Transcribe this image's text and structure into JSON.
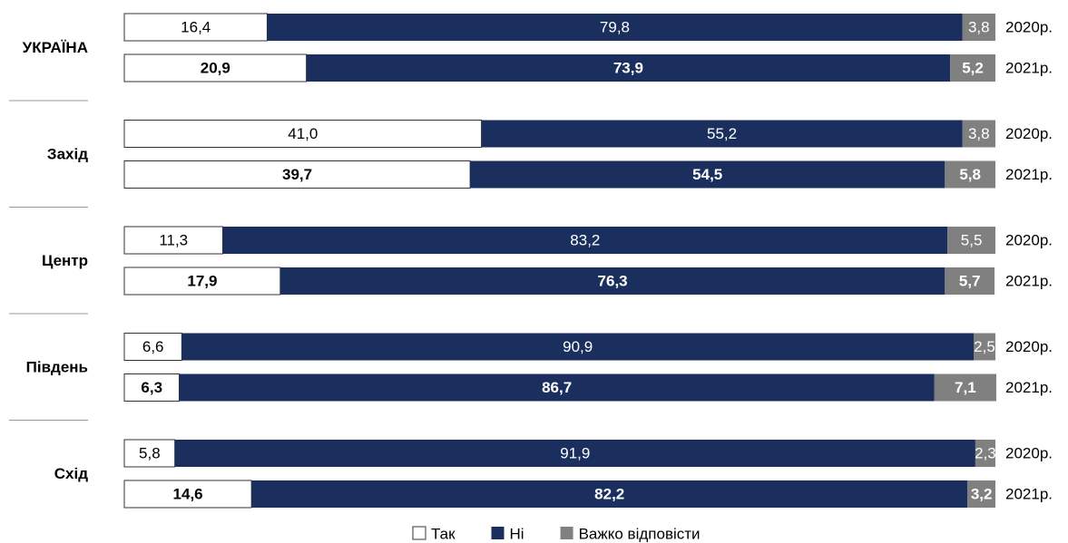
{
  "chart_data": {
    "type": "bar",
    "stacked": true,
    "orientation": "horizontal",
    "groups": [
      "УКРАЇНА",
      "Захід",
      "Центр",
      "Південь",
      "Схід"
    ],
    "categories": [
      "2020р.",
      "2021р.",
      "2020р.",
      "2021р.",
      "2020р.",
      "2021р.",
      "2020р.",
      "2021р.",
      "2020р.",
      "2021р."
    ],
    "xlim": [
      0,
      100
    ],
    "series": [
      {
        "name": "Так",
        "color": "#ffffff",
        "values": [
          16.4,
          20.9,
          41.0,
          39.7,
          11.3,
          17.9,
          6.6,
          6.3,
          5.8,
          14.6
        ],
        "value_labels": [
          "16,4",
          "20,9",
          "41,0",
          "39,7",
          "11,3",
          "17,9",
          "6,6",
          "6,3",
          "5,8",
          "14,6"
        ]
      },
      {
        "name": "Ні",
        "color": "#1a2f5e",
        "values": [
          79.8,
          73.9,
          55.2,
          54.5,
          83.2,
          76.3,
          90.9,
          86.7,
          91.9,
          82.2
        ],
        "value_labels": [
          "79,8",
          "73,9",
          "55,2",
          "54,5",
          "83,2",
          "76,3",
          "90,9",
          "86,7",
          "91,9",
          "82,2"
        ]
      },
      {
        "name": "Важко відповісти",
        "color": "#808080",
        "values": [
          3.8,
          5.2,
          3.8,
          5.8,
          5.5,
          5.7,
          2.5,
          7.1,
          2.3,
          3.2
        ],
        "value_labels": [
          "3,8",
          "5,2",
          "3,8",
          "5,8",
          "5,5",
          "5,7",
          "2,5",
          "7,1",
          "2,3",
          "3,2"
        ]
      }
    ]
  }
}
